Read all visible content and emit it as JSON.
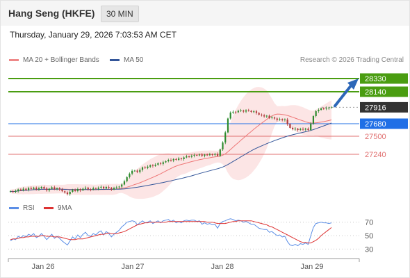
{
  "header": {
    "title": "Hang Seng (HKFE)",
    "timeframe": "30 MIN"
  },
  "datetime": "Thursday, January 29, 2026 7:03:53 AM CET",
  "legend": {
    "ma20": "MA 20 + Bollinger Bands",
    "ma50": "MA 50",
    "rsi": "RSI",
    "rsi_ma": "9MA"
  },
  "research": "Research © 2026 Trading Central",
  "colors": {
    "ma20": "#ee7777",
    "ma50": "#335599",
    "bollinger_fill": "#fbe1e1",
    "target": "#4a9d11",
    "pivot": "#1f6fe6",
    "resistance_support": "#e07070",
    "last_price": "#333333",
    "arrow": "#2d67b8",
    "candle_up": "#2e8b2e",
    "candle_down": "#b03a3a",
    "rsi": "#5b8ee6",
    "rsi_ma": "#dd3333"
  },
  "chart_data": [
    {
      "type": "candlestick",
      "title": "Hang Seng (HKFE)",
      "x_ticks": [
        "Jan 26",
        "Jan 27",
        "Jan 28",
        "Jan 29"
      ],
      "ylim": [
        26630,
        28500
      ],
      "levels": [
        {
          "value": 28330,
          "label": "28330",
          "kind": "target"
        },
        {
          "value": 28140,
          "label": "28140",
          "kind": "target"
        },
        {
          "value": 27916,
          "label": "27916",
          "kind": "last"
        },
        {
          "value": 27680,
          "label": "27680",
          "kind": "pivot"
        },
        {
          "value": 27500,
          "label": "27500",
          "kind": "support"
        },
        {
          "value": 27240,
          "label": "27240",
          "kind": "support"
        }
      ],
      "closes": [
        26708,
        26700,
        26712,
        26735,
        26722,
        26745,
        26730,
        26755,
        26742,
        26760,
        26738,
        26752,
        26770,
        26748,
        26722,
        26745,
        26765,
        26740,
        26752,
        26735,
        26708,
        26690,
        26668,
        26700,
        26730,
        26712,
        26740,
        26722,
        26745,
        26760,
        26738,
        26732,
        26752,
        26742,
        26760,
        26772,
        26748,
        26770,
        26758,
        26735,
        26755,
        26765,
        26775,
        26805,
        26852,
        26912,
        26962,
        27002,
        27005,
        26985,
        27015,
        27052,
        27042,
        27062,
        27082,
        27072,
        27090,
        27112,
        27102,
        27125,
        27140,
        27160,
        27152,
        27172,
        27160,
        27180,
        27170,
        27195,
        27210,
        27205,
        27220,
        27230,
        27225,
        27235,
        27220,
        27235,
        27228,
        27240,
        27232,
        27245,
        27218,
        27310,
        27410,
        27555,
        27755,
        27840,
        27852,
        27845,
        27865,
        27870,
        27855,
        27872,
        27865,
        27850,
        27858,
        27835,
        27810,
        27800,
        27785,
        27795,
        27760,
        27770,
        27755,
        27735,
        27745,
        27730,
        27740,
        27675,
        27620,
        27600,
        27608,
        27590,
        27605,
        27595,
        27610,
        27590,
        27680,
        27790,
        27860,
        27880,
        27900,
        27895,
        27905,
        27912,
        27916
      ],
      "rsi": {
        "ylim": [
          20,
          80
        ],
        "levels": [
          70,
          50,
          30
        ],
        "values": [
          42,
          45,
          44,
          49,
          47,
          50,
          48,
          52,
          50,
          53,
          47,
          49,
          53,
          49,
          44,
          48,
          52,
          46,
          49,
          46,
          42,
          39,
          36,
          42,
          48,
          45,
          51,
          47,
          52,
          55,
          50,
          49,
          53,
          51,
          55,
          57,
          51,
          56,
          53,
          48,
          52,
          55,
          58,
          63,
          66,
          70,
          71,
          72,
          71,
          66,
          69,
          72,
          69,
          70,
          72,
          68,
          70,
          72,
          69,
          72,
          73,
          74,
          71,
          73,
          69,
          71,
          69,
          72,
          73,
          72,
          73,
          73,
          71,
          72,
          67,
          69,
          67,
          68,
          66,
          67,
          61,
          68,
          71,
          72,
          74,
          75,
          74,
          72,
          73,
          72,
          70,
          71,
          69,
          67,
          67,
          64,
          61,
          60,
          59,
          59,
          55,
          56,
          53,
          50,
          51,
          48,
          49,
          41,
          36,
          35,
          37,
          35,
          38,
          37,
          39,
          37,
          50,
          62,
          68,
          69,
          70,
          69,
          69,
          68,
          69
        ],
        "ma": [
          44,
          45,
          45,
          46,
          47,
          47,
          48,
          48,
          49,
          49,
          49,
          49,
          50,
          50,
          49,
          49,
          49,
          48,
          48,
          48,
          47,
          46,
          45,
          44,
          44,
          44,
          45,
          45,
          45,
          46,
          47,
          48,
          49,
          50,
          51,
          52,
          52,
          53,
          54,
          53,
          53,
          53,
          54,
          55,
          56,
          58,
          60,
          62,
          64,
          66,
          67,
          68,
          69,
          69,
          70,
          70,
          70,
          70,
          70,
          70,
          70,
          71,
          71,
          71,
          71,
          71,
          71,
          71,
          71,
          71,
          71,
          71,
          71,
          71,
          71,
          71,
          70,
          70,
          70,
          69,
          68,
          68,
          68,
          68,
          69,
          70,
          71,
          71,
          72,
          72,
          72,
          72,
          72,
          72,
          71,
          70,
          69,
          68,
          67,
          66,
          64,
          63,
          61,
          59,
          57,
          55,
          53,
          51,
          49,
          47,
          45,
          43,
          41,
          40,
          40,
          39,
          39,
          41,
          43,
          46,
          50,
          53,
          56,
          59,
          62
        ]
      }
    }
  ]
}
